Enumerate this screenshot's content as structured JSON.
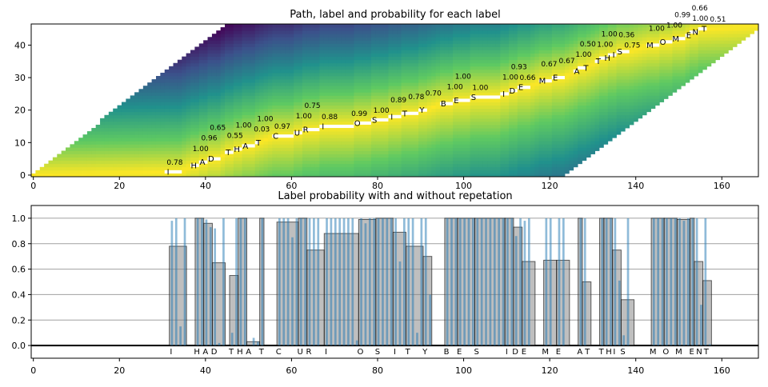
{
  "chart_data": [
    {
      "type": "heatmap",
      "title": "Path, label and probability for each label",
      "xlim": [
        -0.5,
        168.5
      ],
      "ylim": [
        -0.5,
        46.5
      ],
      "xticks": [
        0,
        20,
        40,
        60,
        80,
        100,
        120,
        140,
        160
      ],
      "yticks": [
        0,
        10,
        20,
        30,
        40
      ],
      "colormap": "viridis",
      "path_color": "#ffffff"
    },
    {
      "type": "bar",
      "title": "Label probability with and without repetation",
      "xlim": [
        -0.5,
        168.5
      ],
      "ylim": [
        -0.1,
        1.1
      ],
      "xticks": [
        0,
        20,
        40,
        60,
        80,
        100,
        120,
        140,
        160
      ],
      "yticks": [
        0.0,
        0.2,
        0.4,
        0.6,
        0.8,
        1.0
      ],
      "grid": true,
      "segment_color": "#808080",
      "frame_color": "#1f77b4",
      "words": [
        "I",
        "HAD",
        "THAT",
        "CURIOSITY",
        "BESIDE",
        "ME",
        "AT",
        "THIS",
        "MOMENT"
      ],
      "segments": [
        {
          "label": "I",
          "word": 0,
          "start": 32,
          "end": 35,
          "score": 0.78,
          "frame_probs": [
            0.98,
            1.0,
            0.15,
            1.0
          ]
        },
        {
          "label": "H",
          "word": 1,
          "start": 38,
          "end": 39,
          "score": 1.0,
          "frame_probs": [
            1.0,
            1.0
          ]
        },
        {
          "label": "A",
          "word": 1,
          "start": 40,
          "end": 41,
          "score": 0.96,
          "frame_probs": [
            0.99,
            0.93
          ]
        },
        {
          "label": "D",
          "word": 1,
          "start": 42,
          "end": 44,
          "score": 0.65,
          "frame_probs": [
            0.92,
            0.02,
            1.0
          ]
        },
        {
          "label": "T",
          "word": 2,
          "start": 46,
          "end": 47,
          "score": 0.55,
          "frame_probs": [
            0.1,
            1.0
          ]
        },
        {
          "label": "H",
          "word": 2,
          "start": 48,
          "end": 49,
          "score": 1.0,
          "frame_probs": [
            1.0,
            1.0
          ]
        },
        {
          "label": "A",
          "word": 2,
          "start": 50,
          "end": 52,
          "score": 0.03,
          "frame_probs": [
            0.0,
            0.06,
            0.03
          ]
        },
        {
          "label": "T",
          "word": 2,
          "start": 53,
          "end": 53,
          "score": 1.0,
          "frame_probs": [
            1.0
          ]
        },
        {
          "label": "C",
          "word": 3,
          "start": 57,
          "end": 61,
          "score": 0.97,
          "frame_probs": [
            1.0,
            1.0,
            1.0,
            0.85,
            1.0
          ]
        },
        {
          "label": "U",
          "word": 3,
          "start": 62,
          "end": 63,
          "score": 1.0,
          "frame_probs": [
            1.0,
            1.0
          ]
        },
        {
          "label": "R",
          "word": 3,
          "start": 64,
          "end": 67,
          "score": 0.75,
          "frame_probs": [
            1.0,
            1.0,
            1.0,
            0.0
          ]
        },
        {
          "label": "I",
          "word": 3,
          "start": 68,
          "end": 75,
          "score": 0.88,
          "frame_probs": [
            1.0,
            1.0,
            1.0,
            1.0,
            1.0,
            1.0,
            1.0,
            0.04
          ]
        },
        {
          "label": "O",
          "word": 3,
          "start": 76,
          "end": 79,
          "score": 0.99,
          "frame_probs": [
            1.0,
            0.96,
            1.0,
            1.0
          ]
        },
        {
          "label": "S",
          "word": 3,
          "start": 80,
          "end": 83,
          "score": 1.0,
          "frame_probs": [
            1.0,
            1.0,
            1.0,
            1.0
          ]
        },
        {
          "label": "I",
          "word": 3,
          "start": 84,
          "end": 86,
          "score": 0.89,
          "frame_probs": [
            1.0,
            0.66,
            1.0
          ]
        },
        {
          "label": "T",
          "word": 3,
          "start": 87,
          "end": 90,
          "score": 0.78,
          "frame_probs": [
            1.0,
            1.0,
            0.1,
            1.0
          ]
        },
        {
          "label": "Y",
          "word": 3,
          "start": 91,
          "end": 92,
          "score": 0.7,
          "frame_probs": [
            1.0,
            0.4
          ]
        },
        {
          "label": "B",
          "word": 4,
          "start": 96,
          "end": 98,
          "score": 1.0,
          "frame_probs": [
            1.0,
            1.0,
            1.0
          ]
        },
        {
          "label": "E",
          "word": 4,
          "start": 99,
          "end": 102,
          "score": 1.0,
          "frame_probs": [
            1.0,
            1.0,
            1.0,
            1.0
          ]
        },
        {
          "label": "S",
          "word": 4,
          "start": 103,
          "end": 109,
          "score": 1.0,
          "frame_probs": [
            1.0,
            1.0,
            1.0,
            1.0,
            1.0,
            1.0,
            1.0
          ]
        },
        {
          "label": "I",
          "word": 4,
          "start": 110,
          "end": 111,
          "score": 1.0,
          "frame_probs": [
            1.0,
            1.0
          ]
        },
        {
          "label": "D",
          "word": 4,
          "start": 112,
          "end": 113,
          "score": 0.93,
          "frame_probs": [
            0.86,
            1.0
          ]
        },
        {
          "label": "E",
          "word": 4,
          "start": 114,
          "end": 116,
          "score": 0.66,
          "frame_probs": [
            0.98,
            1.0,
            0.0
          ]
        },
        {
          "label": "M",
          "word": 5,
          "start": 119,
          "end": 121,
          "score": 0.67,
          "frame_probs": [
            1.0,
            1.0,
            0.0
          ]
        },
        {
          "label": "E",
          "word": 5,
          "start": 122,
          "end": 124,
          "score": 0.67,
          "frame_probs": [
            1.0,
            1.0,
            0.0
          ]
        },
        {
          "label": "A",
          "word": 6,
          "start": 127,
          "end": 127,
          "score": 1.0,
          "frame_probs": [
            1.0
          ]
        },
        {
          "label": "T",
          "word": 6,
          "start": 128,
          "end": 129,
          "score": 0.5,
          "frame_probs": [
            1.0,
            0.0
          ]
        },
        {
          "label": "T",
          "word": 7,
          "start": 132,
          "end": 132,
          "score": 1.0,
          "frame_probs": [
            1.0
          ]
        },
        {
          "label": "H",
          "word": 7,
          "start": 133,
          "end": 134,
          "score": 1.0,
          "frame_probs": [
            1.0,
            1.0
          ]
        },
        {
          "label": "I",
          "word": 7,
          "start": 135,
          "end": 136,
          "score": 0.75,
          "frame_probs": [
            1.0,
            0.51
          ]
        },
        {
          "label": "S",
          "word": 7,
          "start": 137,
          "end": 139,
          "score": 0.36,
          "frame_probs": [
            0.08,
            1.0,
            0.0
          ]
        },
        {
          "label": "M",
          "word": 8,
          "start": 144,
          "end": 146,
          "score": 1.0,
          "frame_probs": [
            1.0,
            1.0,
            1.0
          ]
        },
        {
          "label": "O",
          "word": 8,
          "start": 147,
          "end": 149,
          "score": 1.0,
          "frame_probs": [
            1.0,
            1.0,
            1.0
          ]
        },
        {
          "label": "M",
          "word": 8,
          "start": 150,
          "end": 152,
          "score": 0.99,
          "frame_probs": [
            1.0,
            0.98,
            1.0
          ]
        },
        {
          "label": "E",
          "word": 8,
          "start": 153,
          "end": 153,
          "score": 1.0,
          "frame_probs": [
            1.0
          ]
        },
        {
          "label": "N",
          "word": 8,
          "start": 154,
          "end": 155,
          "score": 0.66,
          "frame_probs": [
            1.0,
            0.32
          ]
        },
        {
          "label": "T",
          "word": 8,
          "start": 156,
          "end": 157,
          "score": 0.51,
          "frame_probs": [
            1.0,
            0.01
          ]
        }
      ]
    }
  ]
}
